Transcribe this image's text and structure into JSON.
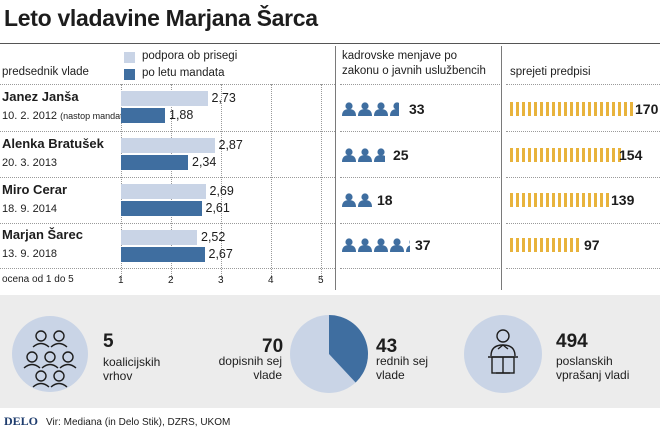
{
  "title": "Leto vladavine Marjana Šarca",
  "colors": {
    "light_bar": "#c9d4e6",
    "dark_bar": "#3f6ea0",
    "icon": "#3f6ea0",
    "gold": "#e8b33c",
    "pie_light": "#c9d4e6",
    "pie_dark": "#3f6ea0"
  },
  "left": {
    "header": "predsednik vlade",
    "legend": [
      {
        "label": "podpora ob prisegi",
        "color": "#c9d4e6"
      },
      {
        "label": "po letu mandata",
        "color": "#3f6ea0"
      }
    ],
    "scale_caption": "ocena od 1 do 5"
  },
  "governments": [
    {
      "name": "Janez Janša",
      "date": "10. 2. 2012",
      "note": "(nastop mandata)"
    },
    {
      "name": "Alenka Bratušek",
      "date": "20. 3. 2013",
      "note": ""
    },
    {
      "name": "Miro Cerar",
      "date": "18. 9. 2014",
      "note": ""
    },
    {
      "name": "Marjan Šarec",
      "date": "13. 9. 2018",
      "note": ""
    }
  ],
  "chart_data": {
    "type": "bar",
    "orientation": "horizontal",
    "categories": [
      "Janez Janša",
      "Alenka Bratušek",
      "Miro Cerar",
      "Marjan Šarec"
    ],
    "series": [
      {
        "name": "podpora ob prisegi",
        "values": [
          2.73,
          2.87,
          2.69,
          2.52
        ],
        "labels": [
          "2,73",
          "2,87",
          "2,69",
          "2,52"
        ]
      },
      {
        "name": "po letu mandata",
        "values": [
          1.88,
          2.34,
          2.61,
          2.67
        ],
        "labels": [
          "1,88",
          "2,34",
          "2,61",
          "2,67"
        ]
      }
    ],
    "xlim": [
      1,
      5
    ],
    "xticks": [
      "1",
      "2",
      "3",
      "4",
      "5"
    ],
    "xlabel": "ocena od 1 do 5"
  },
  "staff_changes": {
    "header": "kadrovske menjave po zakonu o javnih uslužbencih",
    "header_lines": [
      "kadrovske menjave po",
      "zakonu o javnih uslužbencih"
    ],
    "values": [
      33,
      25,
      18,
      37
    ]
  },
  "regulations": {
    "header": "sprejeti predpisi",
    "values": [
      170,
      154,
      139,
      97
    ]
  },
  "summary": {
    "coalition": {
      "value": "5",
      "line1": "koalicijskih",
      "line2": "vrhov"
    },
    "pie": {
      "left_value": "70",
      "left_line1": "dopisnih sej",
      "left_line2": "vlade",
      "right_value": "43",
      "right_line1": "rednih sej",
      "right_line2": "vlade",
      "fractions": [
        70,
        43
      ]
    },
    "questions": {
      "value": "494",
      "line1": "poslanskih",
      "line2": "vprašanj vladi"
    }
  },
  "footer": {
    "brand": "DELO",
    "source": "Vir: Mediana (in Delo Stik), DZRS, UKOM"
  }
}
